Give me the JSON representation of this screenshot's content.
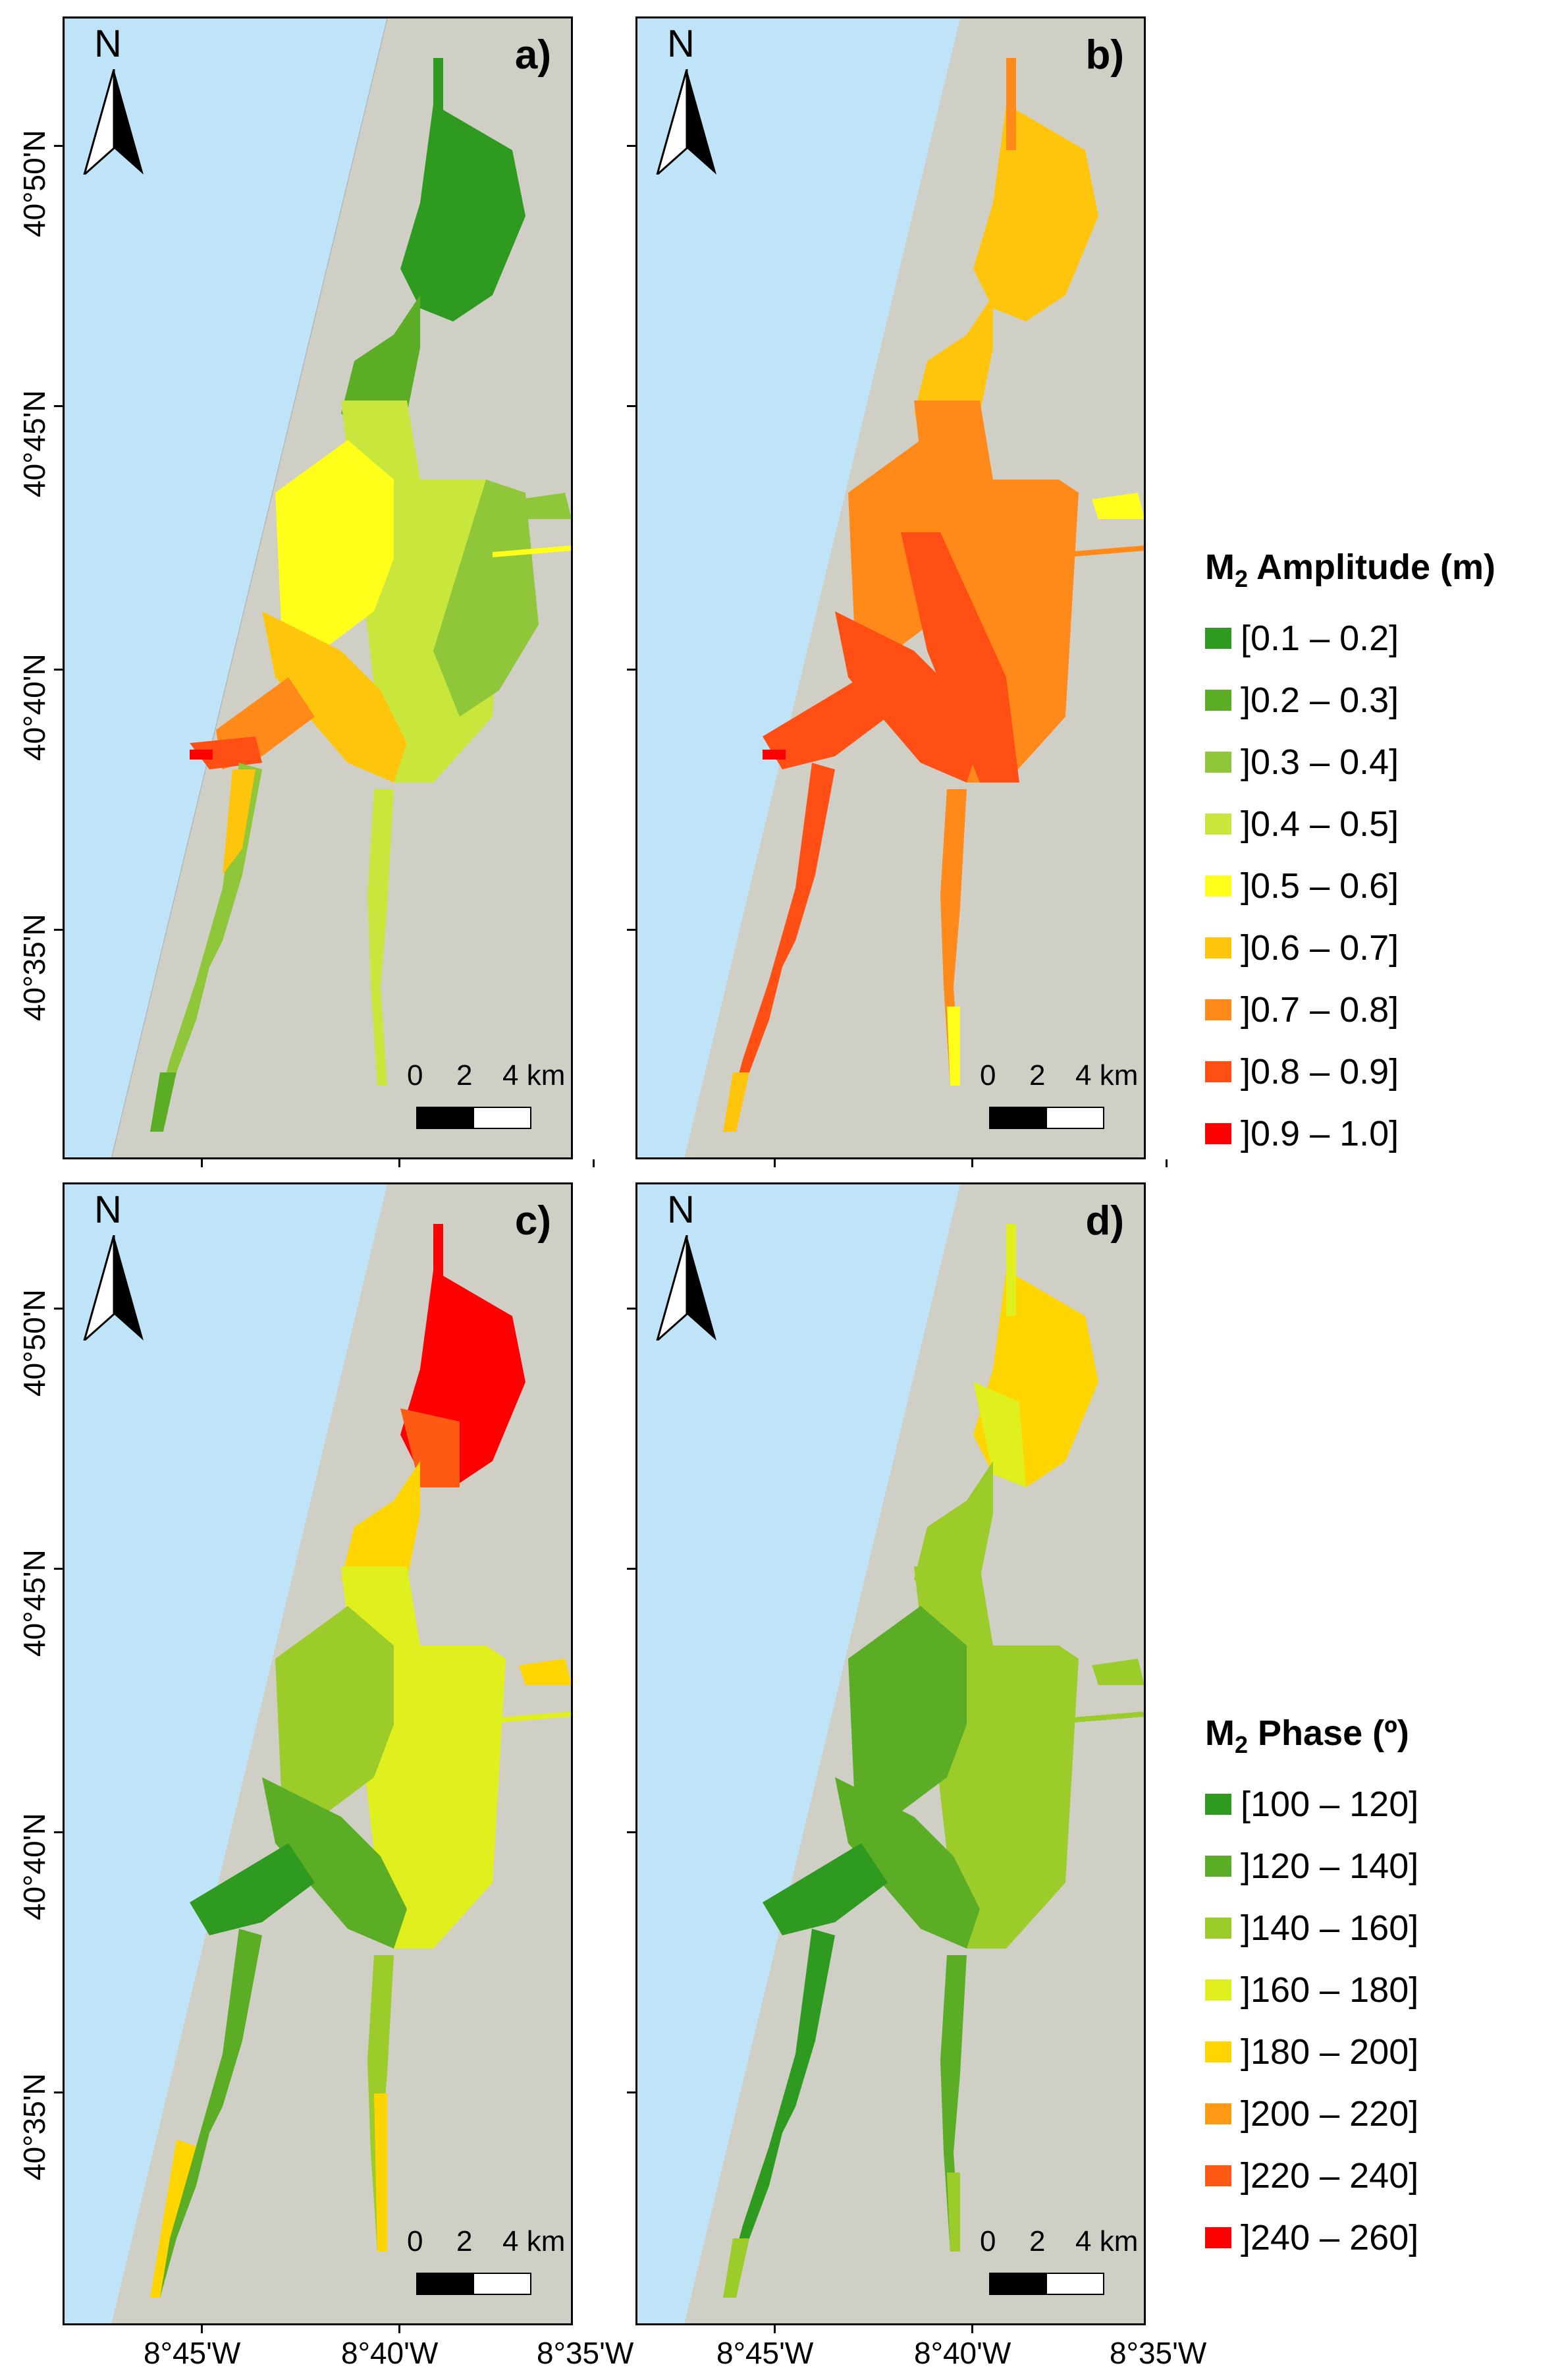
{
  "panels": [
    {
      "label": "a)",
      "north": "N",
      "scale": [
        "0",
        "2",
        "4 km"
      ]
    },
    {
      "label": "b)",
      "north": "N",
      "scale": [
        "0",
        "2",
        "4 km"
      ]
    },
    {
      "label": "c)",
      "north": "N",
      "scale": [
        "0",
        "2",
        "4 km"
      ]
    },
    {
      "label": "d)",
      "north": "N",
      "scale": [
        "0",
        "2",
        "4 km"
      ]
    }
  ],
  "axes": {
    "lat_labels": [
      "40°50'N",
      "40°45'N",
      "40°40'N",
      "40°35'N"
    ],
    "lon_labels": [
      "8°45'W",
      "8°40'W",
      "8°35'W"
    ]
  },
  "colors": {
    "sea": "#bfe3f7",
    "land": "#d0cfc6"
  },
  "legend_amplitude": {
    "title_main": "M",
    "title_sub": "2",
    "title_rest": " Amplitude (m)",
    "items": [
      {
        "label": "[0.1 – 0.2]",
        "color": "#2e9a1f"
      },
      {
        "label": "]0.2 – 0.3]",
        "color": "#5aad24"
      },
      {
        "label": "]0.3 – 0.4]",
        "color": "#8fc63a"
      },
      {
        "label": "]0.4 – 0.5]",
        "color": "#c8e63c"
      },
      {
        "label": "]0.5 – 0.6]",
        "color": "#ffff1a"
      },
      {
        "label": "]0.6 – 0.7]",
        "color": "#ffc40c"
      },
      {
        "label": "]0.7 – 0.8]",
        "color": "#ff8a1a"
      },
      {
        "label": "]0.8 – 0.9]",
        "color": "#ff4f14"
      },
      {
        "label": "]0.9 – 1.0]",
        "color": "#ff0000"
      }
    ]
  },
  "legend_phase": {
    "title_main": "M",
    "title_sub": "2",
    "title_rest": "  Phase (º)",
    "items": [
      {
        "label": "[100 – 120]",
        "color": "#2e9a1f"
      },
      {
        "label": "]120 – 140]",
        "color": "#5aad24"
      },
      {
        "label": "]140 – 160]",
        "color": "#9bcc2a"
      },
      {
        "label": "]160 – 180]",
        "color": "#e0f01e"
      },
      {
        "label": "]180 – 200]",
        "color": "#ffd500"
      },
      {
        "label": "]200 – 220]",
        "color": "#ff9a14"
      },
      {
        "label": "]220 – 240]",
        "color": "#ff5a14"
      },
      {
        "label": "]240 – 260]",
        "color": "#ff0000"
      }
    ]
  }
}
